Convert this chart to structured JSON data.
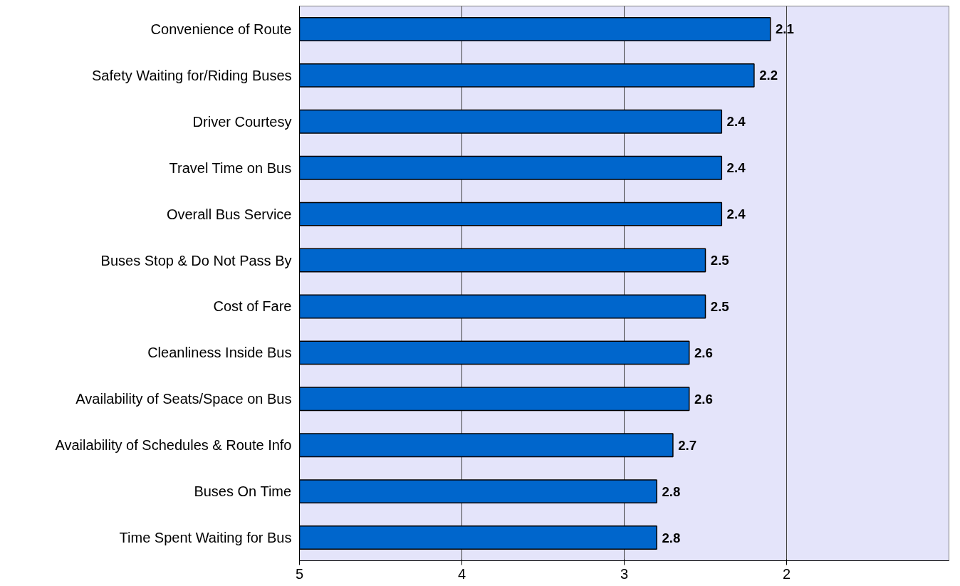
{
  "chart_data": {
    "type": "bar",
    "orientation": "horizontal",
    "categories": [
      "Convenience of Route",
      "Safety Waiting for/Riding Buses",
      "Driver Courtesy",
      "Travel Time on Bus",
      "Overall Bus Service",
      "Buses Stop & Do Not Pass By",
      "Cost of Fare",
      "Cleanliness Inside Bus",
      "Availability of Seats/Space on Bus",
      "Availability of Schedules & Route Info",
      "Buses On Time",
      "Time Spent Waiting for Bus"
    ],
    "base": [
      5,
      5,
      5,
      5,
      5,
      5,
      5,
      5,
      5,
      5,
      5,
      5
    ],
    "values": [
      -2.9,
      -2.8,
      -2.6,
      -2.6,
      -2.6,
      -2.5,
      -2.5,
      -2.4,
      -2.4,
      -2.3,
      -2.2,
      -2.2
    ],
    "value_labels": [
      "2.1",
      "2.2",
      "2.4",
      "2.4",
      "2.4",
      "2.5",
      "2.5",
      "2.6",
      "2.6",
      "2.7",
      "2.8",
      "2.8"
    ],
    "color": "#0066cc",
    "xlim": [
      5,
      1
    ],
    "xticks": [
      5,
      4,
      3,
      2
    ],
    "grid": "x"
  }
}
